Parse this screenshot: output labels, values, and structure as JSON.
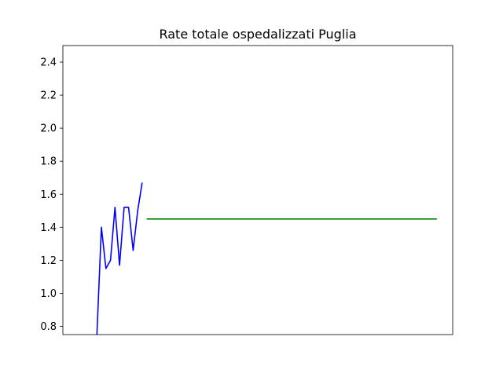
{
  "chart_data": {
    "type": "line",
    "title": "Rate totale ospedalizzati Puglia",
    "xlabel": "",
    "ylabel": "",
    "ylim": [
      0.75,
      2.5
    ],
    "xlim": [
      -7.5,
      78.5
    ],
    "x_ticks_shown": false,
    "grid": false,
    "y_ticks": [
      "0.8",
      "1.0",
      "1.2",
      "1.4",
      "1.6",
      "1.8",
      "2.0",
      "2.2",
      "2.4"
    ],
    "series": [
      {
        "color": "#0000ff",
        "x": [
          0,
          1,
          2,
          3,
          4,
          5,
          6,
          7,
          8,
          9,
          10,
          11
        ],
        "y": [
          0.75,
          1.4,
          1.15,
          1.2,
          1.52,
          1.17,
          1.52,
          1.52,
          1.26,
          1.5,
          1.67,
          null
        ]
      },
      {
        "color": "#008000",
        "x": [
          11,
          75
        ],
        "y": [
          1.45,
          1.45
        ]
      }
    ]
  }
}
